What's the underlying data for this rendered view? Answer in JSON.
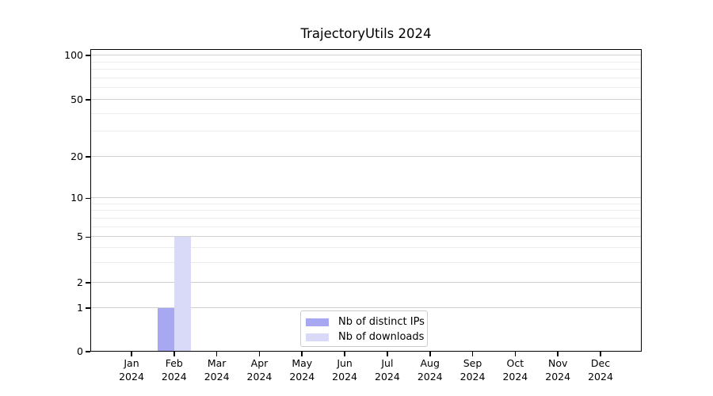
{
  "figure": {
    "title": "TrajectoryUtils 2024"
  },
  "chart_data": {
    "type": "bar",
    "title": "TrajectoryUtils 2024",
    "categories": [
      "Jan 2024",
      "Feb 2024",
      "Mar 2024",
      "Apr 2024",
      "May 2024",
      "Jun 2024",
      "Jul 2024",
      "Aug 2024",
      "Sep 2024",
      "Oct 2024",
      "Nov 2024",
      "Dec 2024"
    ],
    "series": [
      {
        "name": "Nb of distinct IPs",
        "color": "#a8a8f2",
        "values": [
          0,
          1,
          0,
          0,
          0,
          0,
          0,
          0,
          0,
          0,
          0,
          0
        ]
      },
      {
        "name": "Nb of downloads",
        "color": "#d9d9f8",
        "values": [
          0,
          5,
          0,
          0,
          0,
          0,
          0,
          0,
          0,
          0,
          0,
          0
        ]
      }
    ],
    "xlabel": "",
    "ylabel": "",
    "yscale": "symlog",
    "yticks": [
      0,
      1,
      2,
      5,
      10,
      20,
      50,
      100
    ],
    "ylim": [
      0,
      110
    ],
    "grid": true,
    "legend_position": "lower center",
    "annotations": []
  }
}
